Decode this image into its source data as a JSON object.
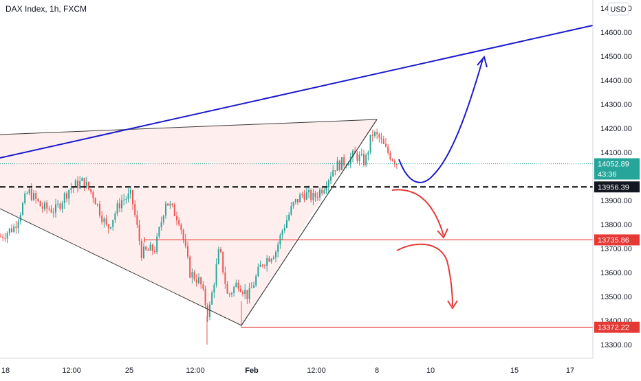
{
  "header": {
    "title": "DAX Index, 1h, FXCM",
    "currency_button": "USD"
  },
  "chart_data": {
    "type": "candlestick",
    "title": "DAX Index, 1h, FXCM",
    "ylim": [
      13240,
      14770
    ],
    "y_ticks": [
      "13300.00",
      "13400.00",
      "13500.00",
      "13600.00",
      "13700.00",
      "13800.00",
      "13900.00",
      "14000.00",
      "14100.00",
      "14200.00",
      "14300.00",
      "14400.00",
      "14500.00",
      "14600.00",
      "14700.00"
    ],
    "x_ticks": [
      "18",
      "12:00",
      "25",
      "12:00",
      "Feb",
      "12:00",
      "8",
      "10",
      "15",
      "17"
    ],
    "price_tags": [
      {
        "label": "14052.89",
        "value": 14052.89,
        "color": "#26a69a"
      },
      {
        "label": "43:36",
        "value": 14010,
        "color": "#26a69a"
      },
      {
        "label": "13956.39",
        "value": 13956.39,
        "color": "#131722"
      },
      {
        "label": "13735.86",
        "value": 13735.86,
        "color": "#e53935"
      },
      {
        "label": "13372.22",
        "value": 13372.22,
        "color": "#e53935"
      }
    ],
    "levels": [
      {
        "name": "current-price",
        "value": 14052.89,
        "style": "dotted",
        "color": "#26a69a"
      },
      {
        "name": "support-dashed",
        "value": 13956.39,
        "style": "dashed",
        "color": "#000000"
      },
      {
        "name": "support-1",
        "value": 13735.86,
        "style": "solid",
        "color": "#e53935"
      },
      {
        "name": "support-2",
        "value": 13372.22,
        "style": "solid",
        "color": "#e53935"
      }
    ],
    "colors": {
      "up": "#26a69a",
      "down": "#ef5350",
      "blue_line": "#1a1acc",
      "red_arrow": "#e53935",
      "wedge_fill": "#fde8e8"
    }
  }
}
